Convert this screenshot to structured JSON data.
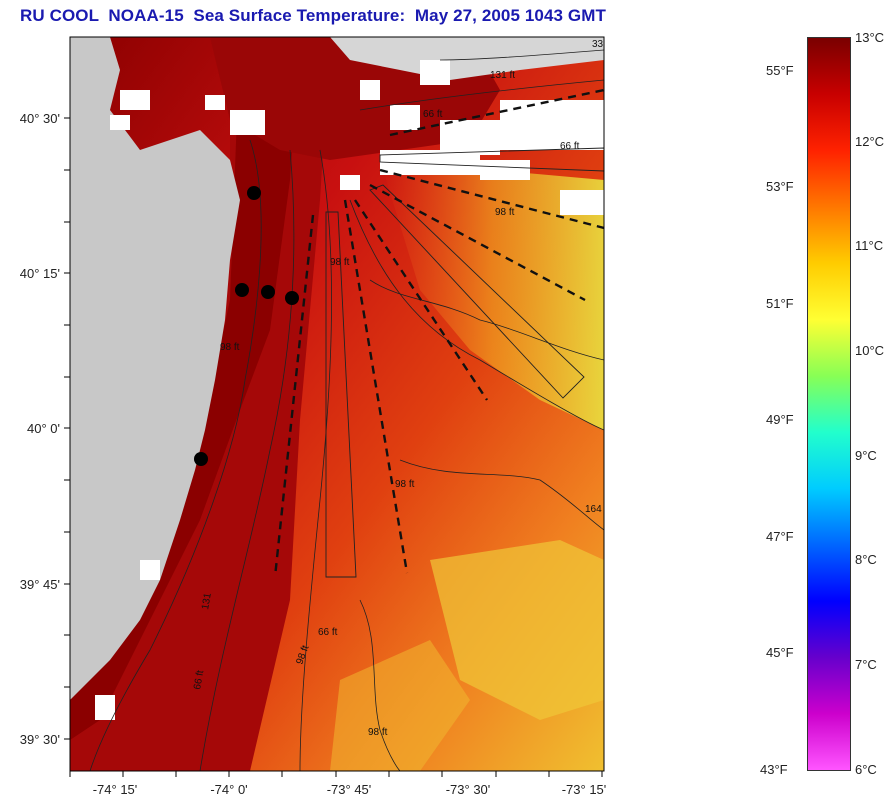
{
  "title": "RU COOL  NOAA-15  Sea Surface Temperature:  May 27, 2005 1043 GMT",
  "map": {
    "lat_labels": [
      "40° 30'",
      "40° 15'",
      "40° 0'",
      "39° 45'",
      "39° 30'"
    ],
    "lon_labels": [
      "-74° 15'",
      "-74° 0'",
      "-73° 45'",
      "-73° 30'",
      "-73° 15'"
    ],
    "contour_labels": [
      "66 ft",
      "131 ft",
      "98 ft",
      "66 ft",
      "98 ft",
      "98 ft",
      "66 ft",
      "66 ft",
      "98 ft",
      "98 ft",
      "98 ft",
      "164",
      "33",
      "131"
    ],
    "colors": {
      "land": "#c8c8c8",
      "cloud": "#ffffff",
      "warm": "#8b0000",
      "station": "#000000"
    },
    "stations": [
      "station-1",
      "station-2",
      "station-3",
      "station-4",
      "station-5"
    ]
  },
  "colorbar": {
    "celsius": [
      "13°C",
      "12°C",
      "11°C",
      "10°C",
      "9°C",
      "8°C",
      "7°C",
      "6°C"
    ],
    "fahrenheit": [
      "55°F",
      "53°F",
      "51°F",
      "49°F",
      "47°F",
      "45°F",
      "43°F"
    ],
    "range_c": [
      6,
      13
    ],
    "gradient": [
      "#7a0000",
      "#c80000",
      "#ff2200",
      "#ff7700",
      "#ffcc00",
      "#ffff33",
      "#88ff55",
      "#22ffcc",
      "#00ccff",
      "#0066ff",
      "#0000ff",
      "#6600cc",
      "#cc00cc",
      "#ff55ff"
    ]
  }
}
